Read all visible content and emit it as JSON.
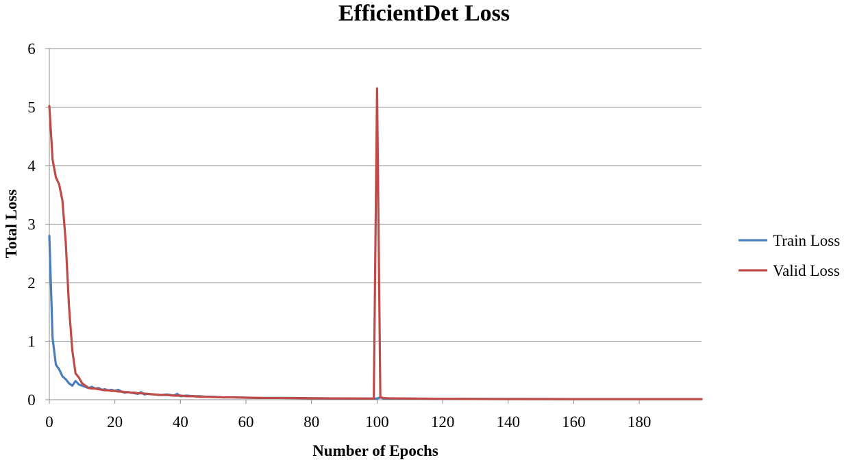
{
  "chart_data": {
    "type": "line",
    "title": "EfficientDet Loss",
    "xlabel": "Number of Epochs",
    "ylabel": "Total Loss",
    "xlim": [
      0,
      199
    ],
    "ylim": [
      0,
      6
    ],
    "xticks": [
      0,
      20,
      40,
      60,
      80,
      100,
      120,
      140,
      160,
      180
    ],
    "yticks": [
      0,
      1,
      2,
      3,
      4,
      5,
      6
    ],
    "grid": "horizontal",
    "legend": "right",
    "series": [
      {
        "name": "Train Loss",
        "color": "#4a7ebb",
        "points": [
          [
            0,
            2.8
          ],
          [
            1,
            1.05
          ],
          [
            2,
            0.6
          ],
          [
            3,
            0.52
          ],
          [
            4,
            0.4
          ],
          [
            5,
            0.35
          ],
          [
            6,
            0.28
          ],
          [
            7,
            0.24
          ],
          [
            8,
            0.32
          ],
          [
            9,
            0.26
          ],
          [
            10,
            0.24
          ],
          [
            11,
            0.22
          ],
          [
            12,
            0.2
          ],
          [
            13,
            0.22
          ],
          [
            14,
            0.19
          ],
          [
            15,
            0.2
          ],
          [
            16,
            0.17
          ],
          [
            17,
            0.18
          ],
          [
            18,
            0.16
          ],
          [
            19,
            0.17
          ],
          [
            20,
            0.15
          ],
          [
            21,
            0.17
          ],
          [
            22,
            0.14
          ],
          [
            23,
            0.12
          ],
          [
            24,
            0.13
          ],
          [
            25,
            0.12
          ],
          [
            26,
            0.11
          ],
          [
            27,
            0.1
          ],
          [
            28,
            0.13
          ],
          [
            29,
            0.09
          ],
          [
            30,
            0.1
          ],
          [
            32,
            0.09
          ],
          [
            34,
            0.08
          ],
          [
            36,
            0.09
          ],
          [
            38,
            0.07
          ],
          [
            39,
            0.1
          ],
          [
            40,
            0.06
          ],
          [
            42,
            0.07
          ],
          [
            44,
            0.06
          ],
          [
            46,
            0.06
          ],
          [
            48,
            0.05
          ],
          [
            50,
            0.05
          ],
          [
            53,
            0.04
          ],
          [
            56,
            0.04
          ],
          [
            60,
            0.035
          ],
          [
            65,
            0.03
          ],
          [
            70,
            0.03
          ],
          [
            75,
            0.03
          ],
          [
            80,
            0.025
          ],
          [
            90,
            0.02
          ],
          [
            99,
            0.02
          ],
          [
            100,
            0.02
          ],
          [
            101,
            0.04
          ],
          [
            102,
            0.02
          ],
          [
            110,
            0.02
          ],
          [
            120,
            0.015
          ],
          [
            140,
            0.012
          ],
          [
            160,
            0.01
          ],
          [
            180,
            0.01
          ],
          [
            199,
            0.01
          ]
        ]
      },
      {
        "name": "Valid Loss",
        "color": "#be4b48",
        "points": [
          [
            0,
            5.02
          ],
          [
            1,
            4.1
          ],
          [
            2,
            3.8
          ],
          [
            3,
            3.68
          ],
          [
            4,
            3.4
          ],
          [
            5,
            2.7
          ],
          [
            6,
            1.6
          ],
          [
            7,
            0.85
          ],
          [
            8,
            0.45
          ],
          [
            9,
            0.38
          ],
          [
            10,
            0.28
          ],
          [
            11,
            0.24
          ],
          [
            12,
            0.2
          ],
          [
            13,
            0.19
          ],
          [
            14,
            0.19
          ],
          [
            15,
            0.18
          ],
          [
            16,
            0.17
          ],
          [
            17,
            0.16
          ],
          [
            18,
            0.16
          ],
          [
            19,
            0.15
          ],
          [
            20,
            0.15
          ],
          [
            21,
            0.14
          ],
          [
            22,
            0.14
          ],
          [
            23,
            0.13
          ],
          [
            24,
            0.13
          ],
          [
            25,
            0.12
          ],
          [
            26,
            0.12
          ],
          [
            27,
            0.11
          ],
          [
            28,
            0.11
          ],
          [
            30,
            0.1
          ],
          [
            32,
            0.09
          ],
          [
            34,
            0.08
          ],
          [
            36,
            0.08
          ],
          [
            38,
            0.07
          ],
          [
            40,
            0.07
          ],
          [
            42,
            0.06
          ],
          [
            44,
            0.06
          ],
          [
            46,
            0.05
          ],
          [
            48,
            0.05
          ],
          [
            50,
            0.045
          ],
          [
            53,
            0.04
          ],
          [
            56,
            0.04
          ],
          [
            60,
            0.035
          ],
          [
            65,
            0.03
          ],
          [
            70,
            0.03
          ],
          [
            75,
            0.028
          ],
          [
            80,
            0.025
          ],
          [
            90,
            0.022
          ],
          [
            98,
            0.02
          ],
          [
            99,
            0.02
          ],
          [
            100,
            5.32
          ],
          [
            101,
            0.04
          ],
          [
            102,
            0.03
          ],
          [
            103,
            0.025
          ],
          [
            110,
            0.02
          ],
          [
            120,
            0.015
          ],
          [
            140,
            0.012
          ],
          [
            160,
            0.01
          ],
          [
            180,
            0.01
          ],
          [
            199,
            0.01
          ]
        ]
      }
    ]
  }
}
